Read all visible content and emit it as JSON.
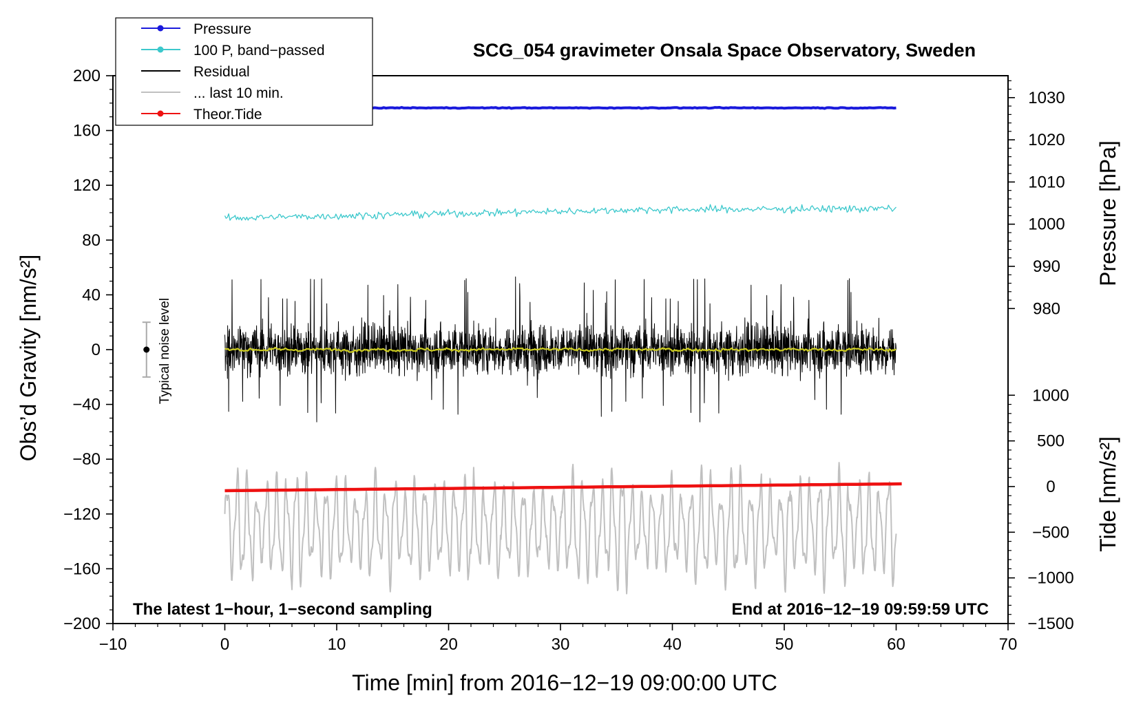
{
  "chart_data": {
    "type": "line",
    "title": "SCG_054 gravimeter Onsala Space Observatory, Sweden",
    "xlabel": "Time [min] from 2016−12−19 09:00:00 UTC",
    "ylabel_left": "Obs’d Gravity [nm/s²]",
    "ylabel_right_top": "Pressure [hPa]",
    "ylabel_right_bottom": "Tide [nm/s²]",
    "xlim": [
      -10,
      70
    ],
    "ylim": [
      -200,
      200
    ],
    "x_ticks": [
      -10,
      0,
      10,
      20,
      30,
      40,
      50,
      60,
      70
    ],
    "x_tick_labels": [
      "−10",
      "0",
      "10",
      "20",
      "30",
      "40",
      "50",
      "60",
      "70"
    ],
    "y_ticks": [
      -200,
      -160,
      -120,
      -80,
      -40,
      0,
      40,
      80,
      120,
      160,
      200
    ],
    "y_tick_labels": [
      "−200",
      "−160",
      "−120",
      "−80",
      "−40",
      "0",
      "40",
      "80",
      "120",
      "160",
      "200"
    ],
    "pressure_ticks": [
      980,
      990,
      1000,
      1010,
      1020,
      1030
    ],
    "pressure_tick_labels": [
      "980",
      "990",
      "1000",
      "1010",
      "1020",
      "1030"
    ],
    "pressure_axis_mapping": {
      "value_a": 980,
      "gravity_a": 30,
      "value_b": 1030,
      "gravity_b": 184
    },
    "tide_ticks": [
      -1500,
      -1000,
      -500,
      0,
      500,
      1000
    ],
    "tide_tick_labels": [
      "−1500",
      "−1000",
      "−500",
      "0",
      "500",
      "1000"
    ],
    "tide_axis_mapping": {
      "value_a": -1500,
      "gravity_a": -200,
      "value_b": 1000,
      "gravity_b": -33.3
    },
    "note_left": "The latest 1−hour, 1−second sampling",
    "note_right": "End at 2016−12−19 09:59:59 UTC",
    "noise_bar": {
      "label": "Typical noise level",
      "x": -7,
      "center": 0,
      "low": -20,
      "high": 20
    },
    "legend": {
      "position": "top-left, outside plot",
      "entries": [
        {
          "label": "Pressure",
          "color": "#1a1adc",
          "marker": true
        },
        {
          "label": "100 P, band−passed",
          "color": "#3cc8cc",
          "marker": true
        },
        {
          "label": "Residual",
          "color": "#000000",
          "marker": false
        },
        {
          "label": "... last 10 min.",
          "color": "#c0c0c0",
          "marker": false
        },
        {
          "label": "Theor.Tide",
          "color": "#ee1111",
          "marker": true
        }
      ]
    },
    "series": [
      {
        "name": "Pressure",
        "color": "#1a1adc",
        "x_range": [
          0,
          60
        ],
        "gravity_level_start": 176.5,
        "gravity_level_end": 176.5,
        "approx_hPa": 1027
      },
      {
        "name": "100 P, band−passed",
        "color": "#3cc8cc",
        "x_range": [
          0,
          60
        ],
        "gravity_level_start": 96,
        "gravity_level_end": 103,
        "noise_amplitude": 4
      },
      {
        "name": "Residual",
        "color": "#000000",
        "x_range": [
          0,
          60
        ],
        "gravity_level": 0,
        "typical_amplitude": 15,
        "peak_amplitude": 55
      },
      {
        "name": "Residual (smoothed)",
        "color": "#cccc22",
        "x_range": [
          0,
          60
        ],
        "gravity_level": 0,
        "amplitude": 2
      },
      {
        "name": "... last 10 min.",
        "color": "#c0c0c0",
        "x_range": [
          0,
          60
        ],
        "gravity_level": -130,
        "amplitude_min": 25,
        "amplitude_max": 50,
        "cycles": 68
      },
      {
        "name": "Theor.Tide",
        "color": "#ee1111",
        "x_range": [
          0,
          60.5
        ],
        "gravity_level_start": -103,
        "gravity_level_end": -98
      }
    ]
  }
}
